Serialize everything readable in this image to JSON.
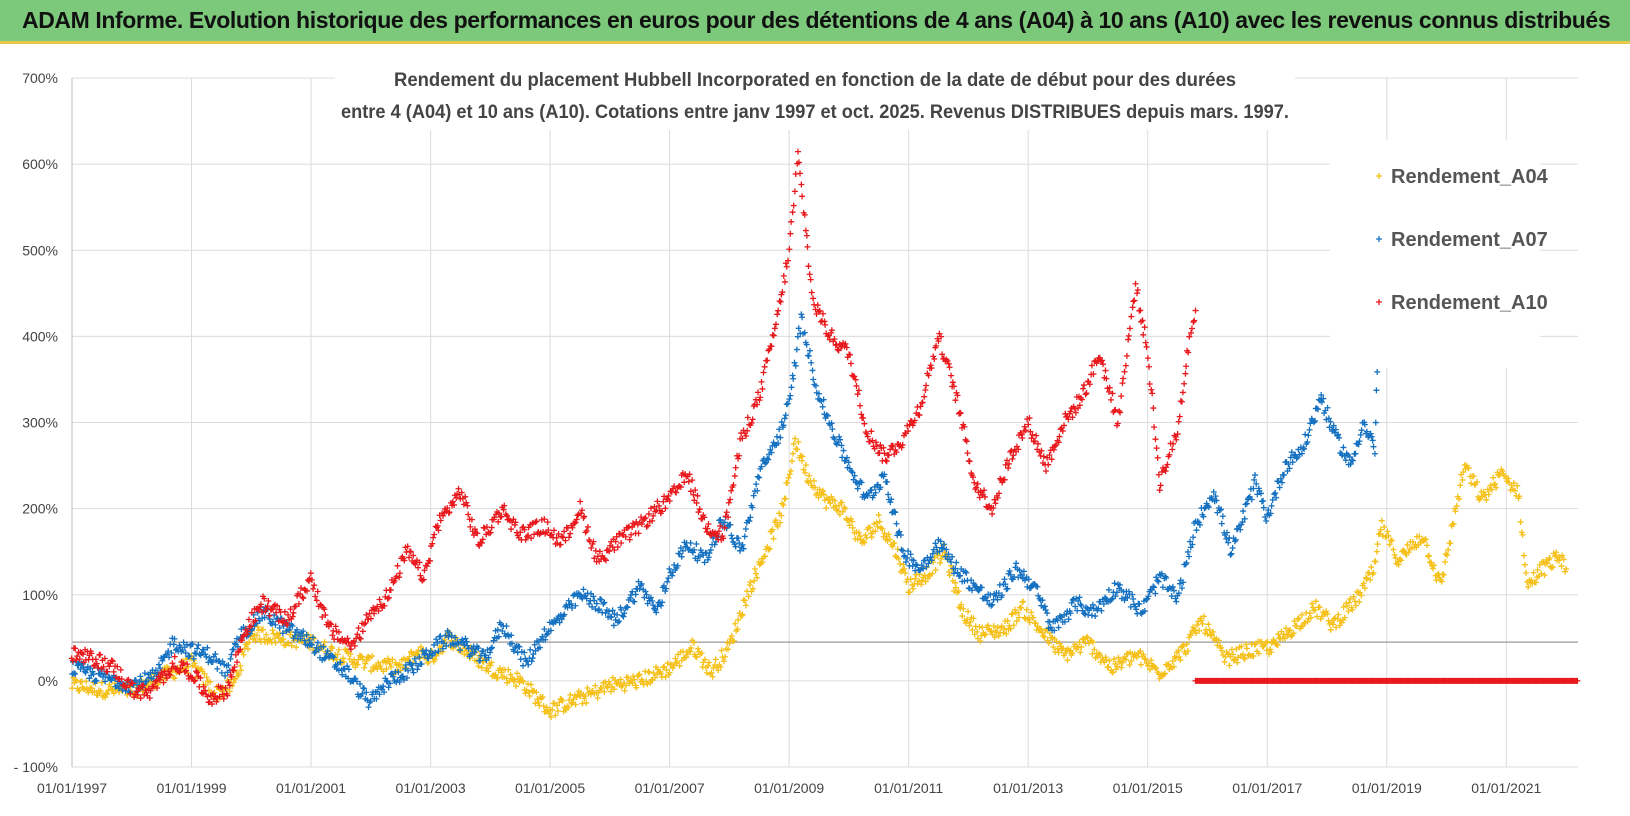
{
  "header": {
    "title": "ADAM Informe. Evolution historique des performances en euros pour des détentions de 4 ans (A04) à 10 ans (A10) avec les revenus connus distribués"
  },
  "chart_data": {
    "type": "scatter",
    "title_line1": "Rendement du placement Hubbell Incorporated en fonction de la date de début pour des durées",
    "title_line2": "entre 4 (A04) et 10 ans (A10).  Cotations entre janv 1997 et oct. 2025.  Revenus DISTRIBUES depuis mars. 1997.",
    "xlabel": "",
    "ylabel": "",
    "xlim": [
      1997.0,
      2022.2
    ],
    "ylim": [
      -100,
      700
    ],
    "x_ticks": [
      1997,
      1999,
      2001,
      2003,
      2005,
      2007,
      2009,
      2011,
      2013,
      2015,
      2017,
      2019,
      2021
    ],
    "x_tick_labels": [
      "01/01/1997",
      "01/01/1999",
      "01/01/2001",
      "01/01/2003",
      "01/01/2005",
      "01/01/2007",
      "01/01/2009",
      "01/01/2011",
      "01/01/2013",
      "01/01/2015",
      "01/01/2017",
      "01/01/2019",
      "01/01/2021"
    ],
    "y_ticks": [
      -100,
      0,
      100,
      200,
      300,
      400,
      500,
      600,
      700
    ],
    "y_tick_labels": [
      "- 100%",
      "0%",
      "100%",
      "200%",
      "300%",
      "400%",
      "500%",
      "600%",
      "700%"
    ],
    "reference_line_y": 45,
    "legend_position": "top-right",
    "marker": "+",
    "series": [
      {
        "name": "Rendement_A04",
        "color": "#f5c018",
        "points": [
          [
            1997.0,
            -5
          ],
          [
            1997.5,
            -10
          ],
          [
            1998.0,
            -12
          ],
          [
            1998.5,
            5
          ],
          [
            1999.0,
            20
          ],
          [
            1999.4,
            -15
          ],
          [
            1999.7,
            -5
          ],
          [
            2000.0,
            55
          ],
          [
            2000.5,
            50
          ],
          [
            2001.0,
            45
          ],
          [
            2001.3,
            35
          ],
          [
            2001.7,
            25
          ],
          [
            2002.0,
            20
          ],
          [
            2002.5,
            15
          ],
          [
            2002.8,
            35
          ],
          [
            2003.0,
            25
          ],
          [
            2003.3,
            50
          ],
          [
            2003.6,
            35
          ],
          [
            2004.0,
            15
          ],
          [
            2004.5,
            0
          ],
          [
            2005.0,
            -35
          ],
          [
            2005.3,
            -25
          ],
          [
            2005.7,
            -15
          ],
          [
            2006.0,
            -5
          ],
          [
            2006.5,
            0
          ],
          [
            2007.0,
            15
          ],
          [
            2007.4,
            40
          ],
          [
            2007.7,
            10
          ],
          [
            2008.0,
            40
          ],
          [
            2008.3,
            100
          ],
          [
            2008.6,
            150
          ],
          [
            2008.9,
            200
          ],
          [
            2009.1,
            280
          ],
          [
            2009.3,
            240
          ],
          [
            2009.6,
            210
          ],
          [
            2009.9,
            200
          ],
          [
            2010.2,
            160
          ],
          [
            2010.5,
            185
          ],
          [
            2010.8,
            150
          ],
          [
            2011.0,
            110
          ],
          [
            2011.3,
            125
          ],
          [
            2011.6,
            150
          ],
          [
            2011.9,
            80
          ],
          [
            2012.2,
            55
          ],
          [
            2012.6,
            60
          ],
          [
            2012.9,
            85
          ],
          [
            2013.2,
            60
          ],
          [
            2013.6,
            30
          ],
          [
            2014.0,
            45
          ],
          [
            2014.4,
            15
          ],
          [
            2014.8,
            30
          ],
          [
            2015.2,
            10
          ],
          [
            2015.6,
            35
          ],
          [
            2015.9,
            70
          ],
          [
            2016.0,
            60
          ],
          [
            2016.3,
            25
          ],
          [
            2016.7,
            35
          ],
          [
            2017.1,
            40
          ],
          [
            2017.4,
            60
          ],
          [
            2017.8,
            85
          ],
          [
            2018.1,
            65
          ],
          [
            2018.5,
            95
          ],
          [
            2018.8,
            130
          ],
          [
            2018.9,
            180
          ],
          [
            2019.2,
            140
          ],
          [
            2019.6,
            170
          ],
          [
            2019.9,
            110
          ],
          [
            2020.3,
            250
          ],
          [
            2020.6,
            210
          ],
          [
            2020.9,
            240
          ],
          [
            2021.2,
            220
          ],
          [
            2021.35,
            110
          ],
          [
            2021.6,
            130
          ],
          [
            2021.9,
            145
          ],
          [
            2022.0,
            130
          ]
        ]
      },
      {
        "name": "Rendement_A07",
        "color": "#1470c0",
        "points": [
          [
            1997.0,
            15
          ],
          [
            1997.5,
            5
          ],
          [
            1998.0,
            -5
          ],
          [
            1998.4,
            5
          ],
          [
            1998.7,
            45
          ],
          [
            1999.0,
            35
          ],
          [
            1999.3,
            30
          ],
          [
            1999.6,
            10
          ],
          [
            1999.8,
            50
          ],
          [
            2000.2,
            80
          ],
          [
            2000.6,
            60
          ],
          [
            2001.0,
            45
          ],
          [
            2001.3,
            25
          ],
          [
            2001.6,
            10
          ],
          [
            2001.8,
            -10
          ],
          [
            2002.0,
            -25
          ],
          [
            2002.3,
            0
          ],
          [
            2002.7,
            15
          ],
          [
            2003.0,
            35
          ],
          [
            2003.3,
            50
          ],
          [
            2003.6,
            40
          ],
          [
            2003.9,
            25
          ],
          [
            2004.2,
            65
          ],
          [
            2004.6,
            20
          ],
          [
            2004.9,
            55
          ],
          [
            2005.2,
            75
          ],
          [
            2005.5,
            100
          ],
          [
            2005.8,
            90
          ],
          [
            2006.1,
            70
          ],
          [
            2006.5,
            110
          ],
          [
            2006.8,
            80
          ],
          [
            2007.0,
            125
          ],
          [
            2007.3,
            160
          ],
          [
            2007.6,
            140
          ],
          [
            2007.9,
            190
          ],
          [
            2008.2,
            150
          ],
          [
            2008.5,
            240
          ],
          [
            2008.8,
            280
          ],
          [
            2009.0,
            320
          ],
          [
            2009.2,
            420
          ],
          [
            2009.5,
            330
          ],
          [
            2009.8,
            280
          ],
          [
            2010.0,
            250
          ],
          [
            2010.3,
            210
          ],
          [
            2010.6,
            240
          ],
          [
            2010.9,
            150
          ],
          [
            2011.2,
            130
          ],
          [
            2011.5,
            160
          ],
          [
            2011.8,
            130
          ],
          [
            2012.1,
            110
          ],
          [
            2012.4,
            90
          ],
          [
            2012.8,
            130
          ],
          [
            2013.1,
            110
          ],
          [
            2013.4,
            60
          ],
          [
            2013.8,
            90
          ],
          [
            2014.1,
            80
          ],
          [
            2014.5,
            110
          ],
          [
            2014.9,
            80
          ],
          [
            2015.2,
            120
          ],
          [
            2015.5,
            95
          ],
          [
            2015.8,
            180
          ],
          [
            2016.1,
            220
          ],
          [
            2016.4,
            150
          ],
          [
            2016.8,
            230
          ],
          [
            2017.0,
            190
          ],
          [
            2017.3,
            250
          ],
          [
            2017.6,
            270
          ],
          [
            2017.9,
            330
          ],
          [
            2018.1,
            290
          ],
          [
            2018.4,
            250
          ],
          [
            2018.6,
            300
          ],
          [
            2018.8,
            270
          ],
          [
            2018.85,
            390
          ]
        ]
      },
      {
        "name": "Rendement_A10",
        "color": "#e8181c",
        "points": [
          [
            1997.0,
            30
          ],
          [
            1997.4,
            25
          ],
          [
            1997.7,
            15
          ],
          [
            1998.0,
            -10
          ],
          [
            1998.3,
            -15
          ],
          [
            1998.7,
            20
          ],
          [
            1999.0,
            10
          ],
          [
            1999.3,
            -20
          ],
          [
            1999.6,
            -10
          ],
          [
            1999.9,
            60
          ],
          [
            2000.2,
            90
          ],
          [
            2000.6,
            70
          ],
          [
            2001.0,
            120
          ],
          [
            2001.3,
            60
          ],
          [
            2001.7,
            40
          ],
          [
            2002.0,
            80
          ],
          [
            2002.3,
            100
          ],
          [
            2002.6,
            150
          ],
          [
            2002.9,
            120
          ],
          [
            2003.1,
            180
          ],
          [
            2003.5,
            220
          ],
          [
            2003.8,
            160
          ],
          [
            2004.2,
            200
          ],
          [
            2004.5,
            170
          ],
          [
            2004.9,
            180
          ],
          [
            2005.2,
            160
          ],
          [
            2005.5,
            200
          ],
          [
            2005.8,
            140
          ],
          [
            2006.1,
            160
          ],
          [
            2006.5,
            180
          ],
          [
            2006.8,
            200
          ],
          [
            2007.0,
            210
          ],
          [
            2007.3,
            240
          ],
          [
            2007.6,
            180
          ],
          [
            2007.9,
            170
          ],
          [
            2008.2,
            280
          ],
          [
            2008.5,
            330
          ],
          [
            2008.8,
            420
          ],
          [
            2009.0,
            500
          ],
          [
            2009.15,
            610
          ],
          [
            2009.4,
            440
          ],
          [
            2009.7,
            400
          ],
          [
            2010.0,
            380
          ],
          [
            2010.3,
            290
          ],
          [
            2010.6,
            260
          ],
          [
            2010.9,
            280
          ],
          [
            2011.2,
            320
          ],
          [
            2011.5,
            400
          ],
          [
            2011.8,
            330
          ],
          [
            2012.1,
            230
          ],
          [
            2012.4,
            200
          ],
          [
            2012.7,
            260
          ],
          [
            2013.0,
            300
          ],
          [
            2013.3,
            250
          ],
          [
            2013.6,
            300
          ],
          [
            2013.9,
            330
          ],
          [
            2014.2,
            380
          ],
          [
            2014.5,
            300
          ],
          [
            2014.8,
            460
          ],
          [
            2015.0,
            380
          ],
          [
            2015.2,
            230
          ],
          [
            2015.5,
            290
          ],
          [
            2015.7,
            400
          ],
          [
            2015.8,
            430
          ]
        ]
      }
    ],
    "zero_series": {
      "name": "Rendement_A10",
      "x_start": 2015.8,
      "x_end": 2022.2,
      "value": 0
    }
  }
}
